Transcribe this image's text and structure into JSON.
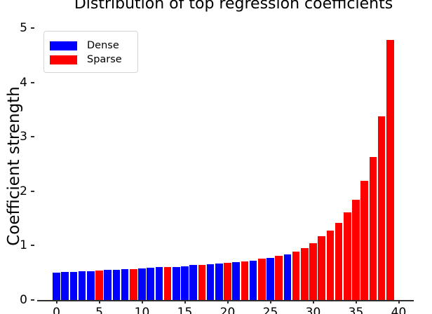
{
  "figure": {
    "title": "Distribution of top regression coefficients"
  },
  "chart_data": {
    "type": "bar",
    "title": "Distribution of top regression coefficients",
    "xlabel": "",
    "ylabel": "Coefficient strength",
    "x": [
      0,
      1,
      2,
      3,
      4,
      5,
      6,
      7,
      8,
      9,
      10,
      11,
      12,
      13,
      14,
      15,
      16,
      17,
      18,
      19,
      20,
      21,
      22,
      23,
      24,
      25,
      26,
      27,
      28,
      29,
      30,
      31,
      32,
      33,
      34,
      35,
      36,
      37,
      38,
      39
    ],
    "values": [
      0.5,
      0.51,
      0.51,
      0.53,
      0.53,
      0.54,
      0.55,
      0.56,
      0.57,
      0.57,
      0.58,
      0.59,
      0.6,
      0.61,
      0.61,
      0.62,
      0.64,
      0.64,
      0.66,
      0.67,
      0.68,
      0.69,
      0.71,
      0.72,
      0.76,
      0.77,
      0.81,
      0.84,
      0.89,
      0.96,
      1.05,
      1.17,
      1.27,
      1.42,
      1.61,
      1.84,
      2.19,
      2.63,
      3.38,
      4.78
    ],
    "series": [
      "Dense",
      "Dense",
      "Dense",
      "Dense",
      "Dense",
      "Sparse",
      "Dense",
      "Dense",
      "Dense",
      "Sparse",
      "Dense",
      "Dense",
      "Dense",
      "Sparse",
      "Dense",
      "Dense",
      "Dense",
      "Sparse",
      "Dense",
      "Dense",
      "Sparse",
      "Dense",
      "Sparse",
      "Dense",
      "Sparse",
      "Dense",
      "Sparse",
      "Dense",
      "Sparse",
      "Sparse",
      "Sparse",
      "Sparse",
      "Sparse",
      "Sparse",
      "Sparse",
      "Sparse",
      "Sparse",
      "Sparse",
      "Sparse",
      "Sparse"
    ],
    "series_colors": {
      "Dense": "#0000ff",
      "Sparse": "#ff0000"
    },
    "x_ticks": [
      0,
      5,
      10,
      15,
      20,
      25,
      30,
      35,
      40
    ],
    "y_ticks": [
      0,
      1,
      2,
      3,
      4,
      5
    ],
    "xlim": [
      -2.5,
      41.5
    ],
    "ylim": [
      0,
      5
    ],
    "grid": false,
    "legend": {
      "position": "upper-left",
      "entries": [
        {
          "label": "Dense",
          "color": "#0000ff"
        },
        {
          "label": "Sparse",
          "color": "#ff0000"
        }
      ]
    },
    "axis_color": "#2e2e2e",
    "text_color": "#000000",
    "background": "#ffffff"
  }
}
